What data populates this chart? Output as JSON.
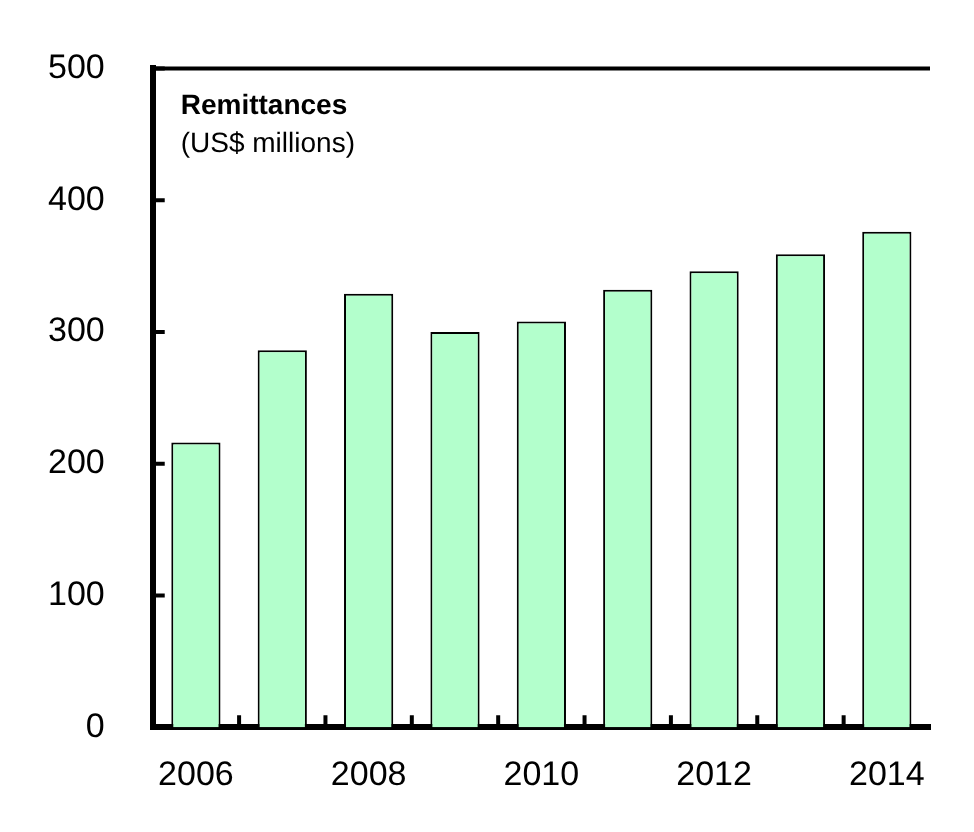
{
  "chart_data": {
    "type": "bar",
    "title": "Remittances",
    "subtitle": "(US$ millions)",
    "categories": [
      "2006",
      null,
      "2008",
      null,
      "2010",
      null,
      "2012",
      null,
      "2014"
    ],
    "values": [
      216,
      286,
      329,
      300,
      308,
      332,
      346,
      359,
      376
    ],
    "color": "#b3ffcc",
    "ylim": [
      0,
      500
    ],
    "yticks": [
      0,
      100,
      200,
      300,
      400,
      500
    ],
    "grid": false,
    "legend": false
  }
}
